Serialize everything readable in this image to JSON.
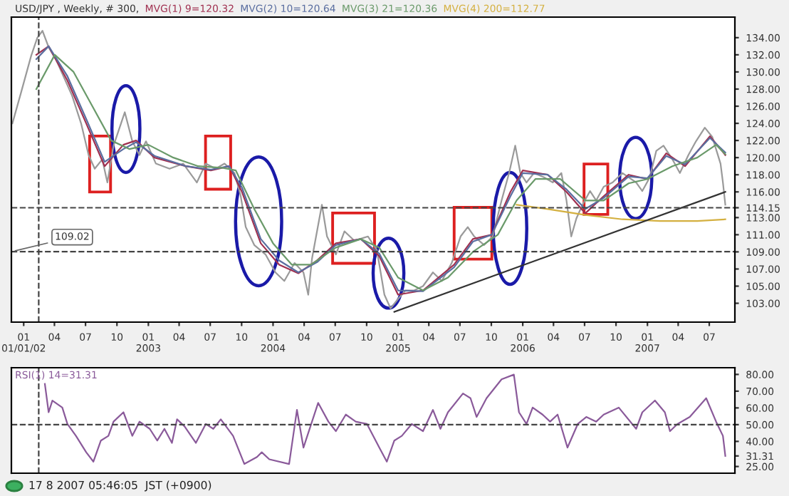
{
  "chart_data": [
    {
      "type": "line",
      "title": "USD/JPY , Weekly, # 300,",
      "legend": "top left",
      "xlim": [
        "2001-11-26",
        "2007-09-14"
      ],
      "ylim": [
        100.8,
        136.4
      ],
      "xticks": [
        {
          "value": "2002-01-01",
          "label": "01\n01/01/02"
        },
        {
          "value": "2002-04-01",
          "label": "04"
        },
        {
          "value": "2002-07-01",
          "label": "07"
        },
        {
          "value": "2002-10-01",
          "label": "10"
        },
        {
          "value": "2003-01-01",
          "label": "01\n2003"
        },
        {
          "value": "2003-04-01",
          "label": "04"
        },
        {
          "value": "2003-07-01",
          "label": "07"
        },
        {
          "value": "2003-10-01",
          "label": "10"
        },
        {
          "value": "2004-01-01",
          "label": "01\n2004"
        },
        {
          "value": "2004-04-01",
          "label": "04"
        },
        {
          "value": "2004-07-01",
          "label": "07"
        },
        {
          "value": "2004-10-01",
          "label": "10"
        },
        {
          "value": "2005-01-01",
          "label": "01\n2005"
        },
        {
          "value": "2005-04-01",
          "label": "04"
        },
        {
          "value": "2005-07-01",
          "label": "07"
        },
        {
          "value": "2005-10-01",
          "label": "10"
        },
        {
          "value": "2006-01-01",
          "label": "01\n2006"
        },
        {
          "value": "2006-04-01",
          "label": "04"
        },
        {
          "value": "2006-07-01",
          "label": "07"
        },
        {
          "value": "2006-10-01",
          "label": "10"
        },
        {
          "value": "2007-01-01",
          "label": "01\n2007"
        },
        {
          "value": "2007-04-01",
          "label": "04"
        },
        {
          "value": "2007-07-01",
          "label": "07"
        }
      ],
      "yticks": [
        {
          "value": 134,
          "label": "134.00"
        },
        {
          "value": 132,
          "label": "132.00"
        },
        {
          "value": 130,
          "label": "130.00"
        },
        {
          "value": 128,
          "label": "128.00"
        },
        {
          "value": 126,
          "label": "126.00"
        },
        {
          "value": 124,
          "label": "124.00"
        },
        {
          "value": 122,
          "label": "122.00"
        },
        {
          "value": 120,
          "label": "120.00"
        },
        {
          "value": 118,
          "label": "118.00"
        },
        {
          "value": 116,
          "label": "116.00"
        },
        114.15,
        {
          "value": 113,
          "label": "113.00"
        },
        {
          "value": 111,
          "label": "111.00"
        },
        {
          "value": 109,
          "label": "109.00"
        },
        {
          "value": 107,
          "label": "107.00"
        },
        {
          "value": 105,
          "label": "105.00"
        },
        {
          "value": 103,
          "label": "103.00"
        }
      ],
      "ref_lines": [
        {
          "axis": "y",
          "value": 114.15,
          "line_style": "dashed",
          "color": "#444444"
        },
        {
          "axis": "y",
          "value": 109.02,
          "label": "109.02",
          "line_style": "dashed",
          "color": "#444444"
        },
        {
          "axis": "x",
          "value": "2002-02-14",
          "line_style": "dashed",
          "color": "#444444"
        }
      ],
      "series": [
        {
          "color": "#9a9a9a",
          "x": [
            "2001-11-29",
            "2001-12-25",
            "2002-01-23",
            "2002-02-10",
            "2002-02-25",
            "2002-03-15",
            "2002-04-06",
            "2002-04-24",
            "2002-05-23",
            "2002-06-18",
            "2002-07-10",
            "2002-07-28",
            "2002-08-19",
            "2002-09-03",
            "2002-09-21",
            "2002-10-13",
            "2002-10-24",
            "2002-11-15",
            "2002-12-06",
            "2002-12-25",
            "2003-01-23",
            "2003-03-04",
            "2003-04-13",
            "2003-05-23",
            "2003-06-18",
            "2003-07-17",
            "2003-08-12",
            "2003-09-10",
            "2003-09-28",
            "2003-10-13",
            "2003-11-07",
            "2003-12-10",
            "2004-01-08",
            "2004-02-03",
            "2004-03-04",
            "2004-03-30",
            "2004-04-13",
            "2004-04-24",
            "2004-05-23",
            "2004-06-07",
            "2004-07-03",
            "2004-07-28",
            "2004-08-26",
            "2004-10-05",
            "2004-10-31",
            "2004-11-22",
            "2004-12-10",
            "2005-01-01",
            "2005-01-23",
            "2005-02-17",
            "2005-03-15",
            "2005-04-13",
            "2005-05-09",
            "2005-06-07",
            "2005-07-03",
            "2005-07-24",
            "2005-08-12",
            "2005-09-10",
            "2005-10-05",
            "2005-10-31",
            "2005-11-22",
            "2005-12-10",
            "2005-12-25",
            "2006-01-12",
            "2006-02-03",
            "2006-03-04",
            "2006-03-30",
            "2006-04-24",
            "2006-05-09",
            "2006-05-23",
            "2006-06-07",
            "2006-06-25",
            "2006-07-17",
            "2006-08-04",
            "2006-08-26",
            "2006-09-21",
            "2006-10-20",
            "2006-11-07",
            "2006-11-29",
            "2006-12-17",
            "2007-01-08",
            "2007-01-27",
            "2007-02-17",
            "2007-03-15",
            "2007-04-06",
            "2007-05-01",
            "2007-05-23",
            "2007-06-18",
            "2007-07-10",
            "2007-08-03",
            "2007-08-10",
            "2007-08-17"
          ],
          "values": [
            124.0,
            127.7,
            131.9,
            134.0,
            134.8,
            132.9,
            131.4,
            129.8,
            127.2,
            124.0,
            120.3,
            118.7,
            119.8,
            117.1,
            121.4,
            124.0,
            125.3,
            121.9,
            120.3,
            121.9,
            119.3,
            118.7,
            119.3,
            117.1,
            119.3,
            118.7,
            119.3,
            118.2,
            115.6,
            111.9,
            109.8,
            108.7,
            106.6,
            105.6,
            107.7,
            106.6,
            104.0,
            108.2,
            114.5,
            110.8,
            108.7,
            111.4,
            110.3,
            110.8,
            109.2,
            104.0,
            102.4,
            103.5,
            104.5,
            104.5,
            105.0,
            106.6,
            105.6,
            107.7,
            110.8,
            111.9,
            110.8,
            109.8,
            110.8,
            115.0,
            118.2,
            121.4,
            118.2,
            117.1,
            118.2,
            117.7,
            117.1,
            118.2,
            115.0,
            110.8,
            112.9,
            114.5,
            116.1,
            115.0,
            116.6,
            117.1,
            118.2,
            117.7,
            117.1,
            116.1,
            117.7,
            120.8,
            121.4,
            119.8,
            118.2,
            120.3,
            121.9,
            123.5,
            122.4,
            119.3,
            117.1,
            114.5
          ]
        },
        {
          "name": "MVG(1) 9=120.32",
          "color": "#a03050",
          "x": [
            "2002-02-07",
            "2002-03-15",
            "2002-05-09",
            "2002-07-03",
            "2002-08-26",
            "2002-10-20",
            "2002-11-26",
            "2003-01-19",
            "2003-04-21",
            "2003-07-03",
            "2003-08-26",
            "2003-10-02",
            "2003-11-26",
            "2004-01-19",
            "2004-03-15",
            "2004-05-09",
            "2004-07-03",
            "2004-09-14",
            "2004-11-07",
            "2005-01-01",
            "2005-03-15",
            "2005-06-14",
            "2005-08-08",
            "2005-10-02",
            "2005-11-26",
            "2006-01-01",
            "2006-03-15",
            "2006-05-09",
            "2006-07-03",
            "2006-08-26",
            "2006-11-07",
            "2007-01-01",
            "2007-02-25",
            "2007-04-21",
            "2007-07-03",
            "2007-08-17"
          ],
          "values": [
            132,
            133,
            129,
            124,
            119,
            121.5,
            122,
            120,
            119,
            118.5,
            119,
            116,
            110,
            107.5,
            106.5,
            108,
            110,
            110.5,
            108.5,
            104,
            104.5,
            107.5,
            110.5,
            111,
            116,
            118.5,
            118,
            116,
            113.5,
            115.5,
            118,
            117.5,
            120.5,
            119,
            122.5,
            120.3
          ]
        },
        {
          "name": "MVG(2) 10=120.64",
          "color": "#5a6ea0",
          "x": [
            "2002-02-07",
            "2002-03-15",
            "2002-05-09",
            "2002-07-03",
            "2002-08-26",
            "2002-10-20",
            "2002-11-26",
            "2003-01-19",
            "2003-04-21",
            "2003-07-03",
            "2003-08-26",
            "2003-10-02",
            "2003-11-26",
            "2004-01-19",
            "2004-03-15",
            "2004-05-09",
            "2004-07-03",
            "2004-09-14",
            "2004-11-07",
            "2005-01-01",
            "2005-03-15",
            "2005-06-14",
            "2005-08-08",
            "2005-10-02",
            "2005-11-26",
            "2006-01-01",
            "2006-03-15",
            "2006-05-09",
            "2006-07-03",
            "2006-08-26",
            "2006-11-07",
            "2007-01-01",
            "2007-02-25",
            "2007-04-21",
            "2007-07-03",
            "2007-08-17"
          ],
          "values": [
            131.5,
            133,
            129.5,
            124.5,
            119.5,
            121,
            121.8,
            120.2,
            119,
            118.6,
            119,
            116.5,
            110.5,
            108,
            106.6,
            107.8,
            109.8,
            110.5,
            108.8,
            104.5,
            104.4,
            107.2,
            110.2,
            111,
            115.5,
            118.2,
            118,
            116.3,
            114,
            115.3,
            117.8,
            117.6,
            120.2,
            119.2,
            122.3,
            120.6
          ]
        },
        {
          "name": "MVG(3) 21=120.36",
          "color": "#6a9a6a",
          "x": [
            "2002-02-07",
            "2002-04-02",
            "2002-05-27",
            "2002-07-21",
            "2002-09-14",
            "2002-11-07",
            "2003-01-01",
            "2003-03-15",
            "2003-05-27",
            "2003-08-08",
            "2003-09-14",
            "2003-11-07",
            "2004-01-01",
            "2004-02-25",
            "2004-04-21",
            "2004-07-03",
            "2004-09-14",
            "2004-11-07",
            "2005-01-01",
            "2005-03-15",
            "2005-05-27",
            "2005-08-08",
            "2005-10-20",
            "2005-12-14",
            "2006-02-07",
            "2006-04-21",
            "2006-07-03",
            "2006-08-26",
            "2006-11-07",
            "2007-01-01",
            "2007-03-15",
            "2007-05-27",
            "2007-07-21",
            "2007-08-17"
          ],
          "values": [
            128,
            132,
            130,
            126,
            122,
            121,
            121.5,
            120,
            119,
            118.8,
            118.5,
            114,
            110,
            107.5,
            107.5,
            109.5,
            110.5,
            109.5,
            106,
            104.5,
            106,
            109,
            111,
            115,
            117.5,
            117.5,
            115,
            115,
            117,
            117.5,
            119,
            120,
            121.5,
            120.4
          ]
        },
        {
          "name": "MVG(4) 200=112.77",
          "color": "#d4b040",
          "x": [
            "2005-12-14",
            "2006-03-15",
            "2006-07-03",
            "2006-10-20",
            "2007-02-07",
            "2007-05-27",
            "2007-08-17"
          ],
          "values": [
            114.5,
            114,
            113.3,
            112.8,
            112.6,
            112.6,
            112.8
          ]
        },
        {
          "color": "#333333",
          "x": [
            "2004-12-21",
            "2007-08-17"
          ],
          "values": [
            102,
            116
          ]
        }
      ]
    },
    {
      "type": "line",
      "legend": "top left",
      "xlim": [
        "2001-11-26",
        "2007-09-14"
      ],
      "ylim": [
        21,
        84
      ],
      "tick_labels": "y",
      "annotations": [
        "17 8 2007 05:46:05  JST (+0900)"
      ],
      "yticks": [
        {
          "value": 80,
          "label": "80.00"
        },
        {
          "value": 70,
          "label": "70.00"
        },
        {
          "value": 60,
          "label": "60.00"
        },
        {
          "value": 50,
          "label": "50.00"
        },
        {
          "value": 40,
          "label": "40.00"
        },
        31.31,
        {
          "value": 25,
          "label": "25.00"
        }
      ],
      "ref_lines": [
        {
          "axis": "y",
          "value": 50,
          "line_style": "dashed",
          "color": "#444444"
        },
        {
          "axis": "x",
          "value": "2002-02-14",
          "line_style": "dashed",
          "color": "#444444"
        }
      ],
      "series": [
        {
          "name": "RSI(1) 14=31.31",
          "color": "#8a5a9a",
          "x": [
            "2002-03-04",
            "2002-03-15",
            "2002-03-26",
            "2002-04-24",
            "2002-05-09",
            "2002-06-03",
            "2002-07-03",
            "2002-07-24",
            "2002-08-15",
            "2002-09-06",
            "2002-09-21",
            "2002-10-20",
            "2002-11-15",
            "2002-12-06",
            "2003-01-05",
            "2003-01-27",
            "2003-02-17",
            "2003-03-11",
            "2003-03-26",
            "2003-04-17",
            "2003-05-20",
            "2003-06-18",
            "2003-07-10",
            "2003-08-01",
            "2003-09-06",
            "2003-10-09",
            "2003-11-15",
            "2003-11-29",
            "2003-12-21",
            "2004-02-17",
            "2004-03-11",
            "2004-03-30",
            "2004-05-12",
            "2004-06-11",
            "2004-07-03",
            "2004-08-01",
            "2004-08-30",
            "2004-10-02",
            "2004-11-07",
            "2004-11-29",
            "2004-12-21",
            "2005-01-12",
            "2005-02-10",
            "2005-03-15",
            "2005-04-13",
            "2005-05-05",
            "2005-05-27",
            "2005-07-10",
            "2005-08-01",
            "2005-08-19",
            "2005-09-17",
            "2005-10-31",
            "2005-12-06",
            "2005-12-21",
            "2006-01-12",
            "2006-01-30",
            "2006-02-28",
            "2006-03-22",
            "2006-04-13",
            "2006-05-12",
            "2006-06-11",
            "2006-07-06",
            "2006-08-04",
            "2006-08-26",
            "2006-10-09",
            "2006-11-29",
            "2006-12-17",
            "2007-01-23",
            "2007-02-21",
            "2007-03-08",
            "2007-03-30",
            "2007-05-05",
            "2007-06-22",
            "2007-07-21",
            "2007-08-10",
            "2007-08-17"
          ],
          "values": [
            74.3,
            57.4,
            64.4,
            60.2,
            50.4,
            43.3,
            33.5,
            27.9,
            40.5,
            43.3,
            51.8,
            57.4,
            43.3,
            51.8,
            47.5,
            40.5,
            47.5,
            39.1,
            53.2,
            48.9,
            39.1,
            50.4,
            47.5,
            53.2,
            43.3,
            26.5,
            30.7,
            33.5,
            29.3,
            26.5,
            58.8,
            36.3,
            63.0,
            51.8,
            46.1,
            56.0,
            51.8,
            50.4,
            36.3,
            27.9,
            40.5,
            43.3,
            50.4,
            46.1,
            58.8,
            47.5,
            57.4,
            68.6,
            65.8,
            54.6,
            65.8,
            77.1,
            79.9,
            57.4,
            50.4,
            60.2,
            56.0,
            51.8,
            56.0,
            36.3,
            50.4,
            54.6,
            51.8,
            56.0,
            60.2,
            47.5,
            57.4,
            64.4,
            57.4,
            46.1,
            50.4,
            54.6,
            65.8,
            51.8,
            43.3,
            31.31
          ]
        }
      ]
    }
  ]
}
